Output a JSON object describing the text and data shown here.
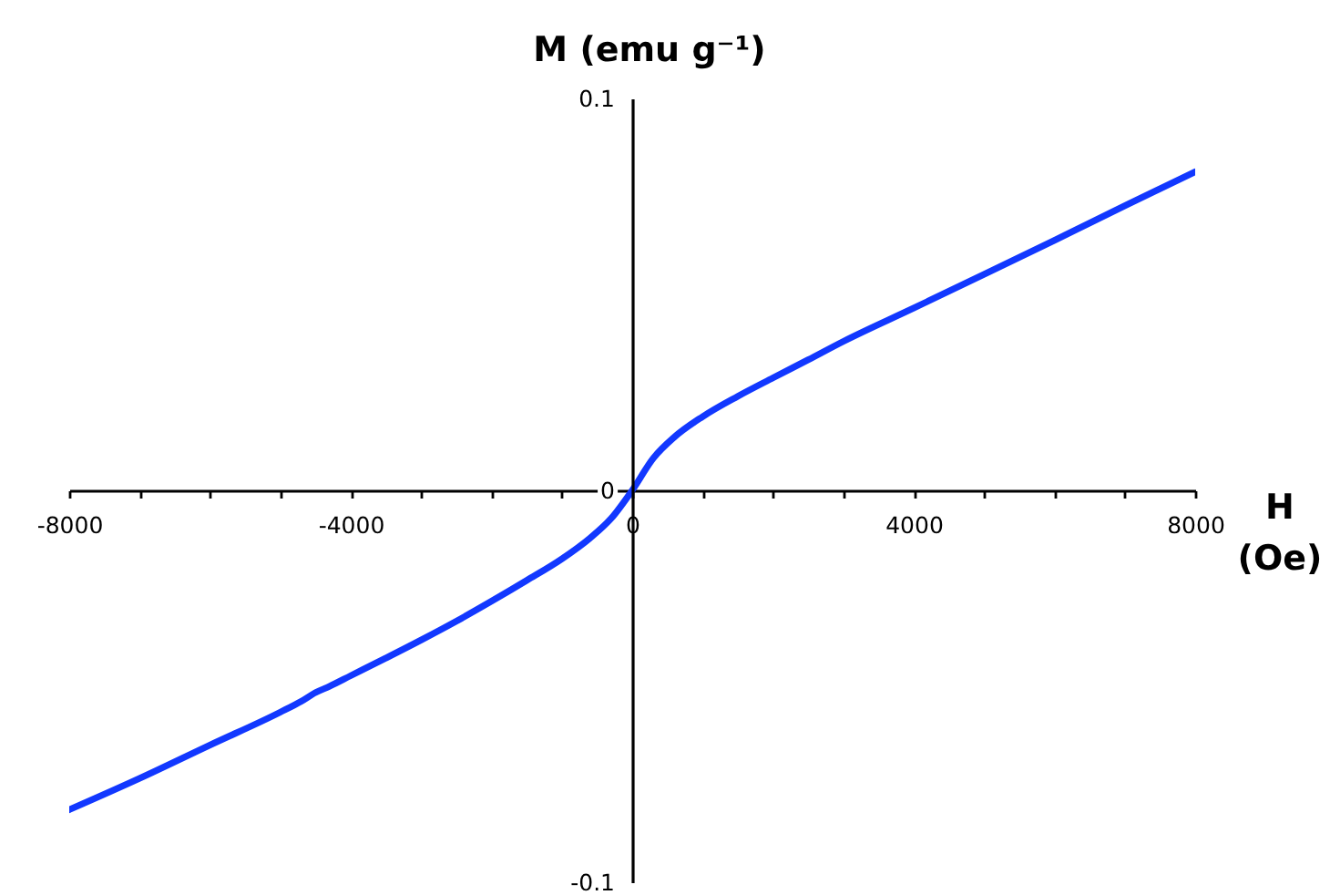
{
  "chart_data": {
    "type": "line",
    "xlabel": "H (Oe)",
    "ylabel": "M (emu g⁻¹)",
    "x": [
      -8000,
      -7000,
      -6000,
      -5000,
      -4700,
      -4500,
      -4300,
      -4000,
      -3500,
      -3000,
      -2500,
      -2000,
      -1500,
      -1000,
      -600,
      -300,
      0,
      300,
      600,
      1000,
      1500,
      2000,
      2500,
      3000,
      4000,
      5000,
      6000,
      7000,
      8000
    ],
    "series": [
      {
        "color": "#1238ff",
        "values": [
          -0.0815,
          -0.0735,
          -0.065,
          -0.0566,
          -0.0538,
          -0.0516,
          -0.05,
          -0.0473,
          -0.0428,
          -0.0382,
          -0.0334,
          -0.0283,
          -0.023,
          -0.0175,
          -0.0122,
          -0.0072,
          0,
          0.0082,
          0.0136,
          0.0188,
          0.024,
          0.0287,
          0.0333,
          0.038,
          0.0465,
          0.0551,
          0.0638,
          0.0726,
          0.0813
        ]
      }
    ],
    "xlim": [
      -8000,
      8000
    ],
    "ylim": [
      -0.1,
      0.1
    ],
    "xticks": [
      -8000,
      {
        "value": -7000,
        "label": null
      },
      {
        "value": -6000,
        "label": null
      },
      {
        "value": -5000,
        "label": null
      },
      -4000,
      {
        "value": -3000,
        "label": null
      },
      {
        "value": -2000,
        "label": null
      },
      {
        "value": -1000,
        "label": null
      },
      0,
      {
        "value": 1000,
        "label": null
      },
      {
        "value": 2000,
        "label": null
      },
      {
        "value": 3000,
        "label": null
      },
      4000,
      {
        "value": 5000,
        "label": null
      },
      {
        "value": 6000,
        "label": null
      },
      {
        "value": 7000,
        "label": null
      },
      8000
    ],
    "yticks": [
      -0.1,
      0,
      0.1
    ]
  }
}
